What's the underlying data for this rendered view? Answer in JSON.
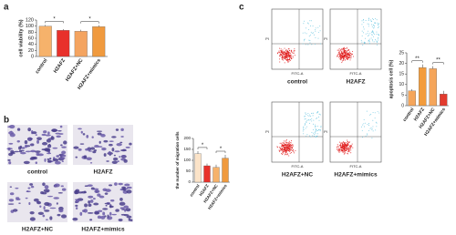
{
  "figure": {
    "panel_labels": [
      "a",
      "b",
      "c"
    ],
    "micrograph_labels": [
      "control",
      "H2AFZ",
      "H2AFZ+NC",
      "H2AFZ+mimics"
    ],
    "flow_labels": [
      "control",
      "H2AFZ",
      "H2AFZ+NC",
      "H2AFZ+mimics"
    ],
    "flow_axes": {
      "x": "FITC-A",
      "y": "PI"
    }
  },
  "chart_data": [
    {
      "type": "bar",
      "ylabel": "cell viability (%)",
      "categories": [
        "control",
        "H2AFZ",
        "H2AFZ+NC",
        "H2AFZ+mimics"
      ],
      "values": [
        100,
        86,
        83,
        98
      ],
      "errors": [
        4,
        4,
        5,
        5
      ],
      "colors": [
        "#f6b26b",
        "#e8312b",
        "#f4a460",
        "#f09a3e"
      ],
      "ylim": [
        0,
        120
      ],
      "yticks": [
        0,
        20,
        40,
        60,
        80,
        100,
        120
      ],
      "annotations": [
        "*",
        "*"
      ]
    },
    {
      "type": "bar",
      "ylabel": "the number of migration cells",
      "categories": [
        "control",
        "H2AFZ",
        "H2AFZ+NC",
        "H2AFZ+mimics"
      ],
      "values": [
        130,
        75,
        68,
        110
      ],
      "errors": [
        12,
        10,
        12,
        15
      ],
      "colors": [
        "#fbe3c8",
        "#e8312b",
        "#f6b26b",
        "#f09a3e"
      ],
      "ylim": [
        0,
        200
      ],
      "yticks": [
        0,
        50,
        100,
        150,
        200
      ],
      "annotations": [
        "*",
        "*"
      ]
    },
    {
      "type": "bar",
      "ylabel": "apoptosis cell (%)",
      "categories": [
        "control",
        "H2AFZ",
        "H2AFZ+NC",
        "H2AFZ+mimics"
      ],
      "values": [
        7,
        18,
        17.5,
        5.5
      ],
      "errors": [
        0.8,
        1.5,
        1.2,
        1.5
      ],
      "colors": [
        "#f5a55a",
        "#f39c3c",
        "#f5a55a",
        "#e23b2e"
      ],
      "ylim": [
        0,
        25
      ],
      "yticks": [
        0,
        5,
        10,
        15,
        20,
        25
      ],
      "annotations": [
        "**",
        "**"
      ]
    }
  ]
}
